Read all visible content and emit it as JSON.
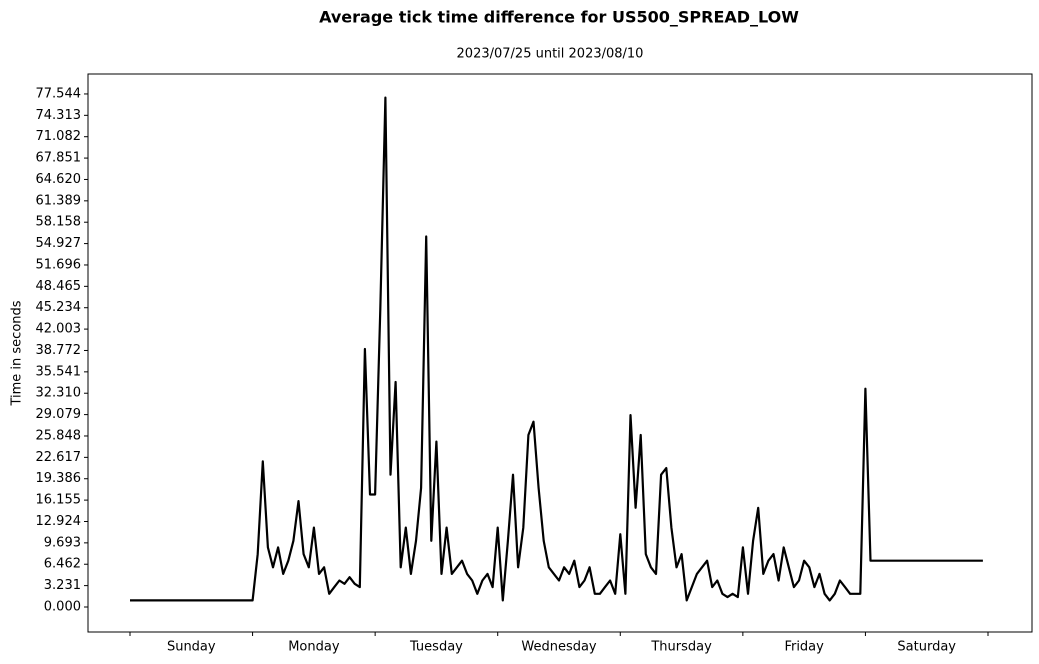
{
  "chart_data": {
    "type": "line",
    "title": "Average tick time difference for US500_SPREAD_LOW",
    "subtitle": "2023/07/25 until 2023/08/10",
    "y_label": "Time in seconds",
    "color": "#000000",
    "categories": [
      "Sunday",
      "Monday",
      "Tuesday",
      "Wednesday",
      "Thursday",
      "Friday",
      "Saturday"
    ],
    "values": [
      [
        1,
        1,
        1,
        1,
        1,
        1,
        1,
        1,
        1,
        1,
        1,
        1,
        1,
        1,
        1,
        1,
        1,
        1,
        1,
        1,
        1,
        1,
        1,
        1
      ],
      [
        1,
        8,
        22,
        9,
        6,
        9,
        5,
        7,
        10,
        16,
        8,
        6,
        12,
        5,
        6,
        2,
        3,
        4,
        3.5,
        4.5,
        3.5,
        3,
        39,
        17
      ],
      [
        17,
        45,
        77,
        20,
        34,
        6,
        12,
        5,
        10,
        18,
        56,
        10,
        25,
        5,
        12,
        5,
        6,
        7,
        5,
        4,
        2,
        4,
        5,
        3
      ],
      [
        12,
        1,
        10,
        20,
        6,
        12,
        26,
        28,
        18,
        10,
        6,
        5,
        4,
        6,
        5,
        7,
        3,
        4,
        6,
        2,
        2,
        3,
        4,
        2
      ],
      [
        11,
        2,
        29,
        15,
        26,
        8,
        6,
        5,
        20,
        21,
        12,
        6,
        8,
        1,
        3,
        5,
        6,
        7,
        3,
        4,
        2,
        1.5,
        2,
        1.5
      ],
      [
        9,
        2,
        10,
        15,
        5,
        7,
        8,
        4,
        9,
        6,
        3,
        4,
        7,
        6,
        3,
        5,
        2,
        1,
        2,
        4,
        3,
        2,
        2,
        2
      ],
      [
        33,
        7,
        7,
        7,
        7,
        7,
        7,
        7,
        7,
        7,
        7,
        7,
        7,
        7,
        7,
        7,
        7,
        7,
        7,
        7,
        7,
        7,
        7,
        7
      ]
    ],
    "ylim": [
      -3.78,
      80.56
    ],
    "yticks": [
      {
        "value": 0,
        "label": "0.000"
      },
      3.231,
      6.462,
      9.693,
      12.924,
      16.155,
      19.386,
      22.617,
      25.848,
      29.079,
      {
        "value": 32.31,
        "label": "32.310"
      },
      35.541,
      38.772,
      42.003,
      45.234,
      48.465,
      51.696,
      54.927,
      58.158,
      61.389,
      {
        "value": 64.62,
        "label": "64.620"
      },
      67.851,
      71.082,
      74.313,
      77.544
    ],
    "grid": false
  }
}
